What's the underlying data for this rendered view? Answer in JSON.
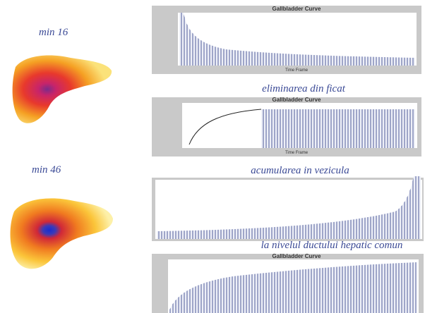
{
  "images": [
    {
      "label": "min 16"
    },
    {
      "label": "min 46"
    }
  ],
  "panels": [
    {
      "title": "Gallbladder Curve",
      "x_label": "Time Frame"
    },
    {
      "title": "Gallbladder Curve",
      "x_label": "Time Frame"
    },
    {
      "title": "Gallbladder Curve"
    }
  ],
  "captions": [
    "eliminarea din ficat",
    "acumularea in vezicula",
    "la nivelul ductului hepatic comun"
  ]
}
